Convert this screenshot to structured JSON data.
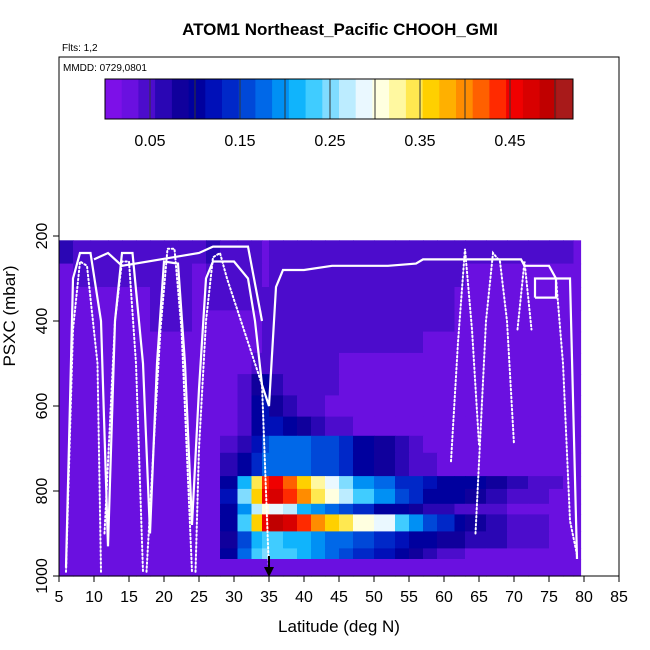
{
  "chart_data": {
    "type": "heatmap",
    "title": "ATOM1 Northeast_Pacific CHOOH_GMI",
    "subtitle_lines": [
      "Flts: 1,2",
      "MMDD: 0729,0801"
    ],
    "xlabel": "Latitude (deg N)",
    "ylabel": "PSXC (mbar)",
    "xlim": [
      5,
      85
    ],
    "ylim": [
      1000,
      0
    ],
    "x_ticks": [
      5,
      10,
      15,
      20,
      25,
      30,
      35,
      40,
      45,
      50,
      55,
      60,
      65,
      70,
      75,
      80,
      85
    ],
    "y_ticks": [
      200,
      400,
      600,
      800,
      1000
    ],
    "colorbar": {
      "range": [
        0,
        0.52
      ],
      "tick_values": [
        0.05,
        0.15,
        0.25,
        0.35,
        0.45
      ],
      "tick_labels": [
        "0.05",
        "0.15",
        "0.25",
        "0.35",
        "0.45"
      ],
      "colors": [
        "#7d10e8",
        "#6a10e0",
        "#4c0ccc",
        "#2a06b4",
        "#10009c",
        "#00009e",
        "#0010b8",
        "#0028c8",
        "#0048d8",
        "#0068e8",
        "#0090f4",
        "#10b4fc",
        "#40ccff",
        "#80dcff",
        "#bcecff",
        "#eaf8ff",
        "#ffffe0",
        "#fff8a0",
        "#ffe850",
        "#ffd000",
        "#ffb000",
        "#ff8c00",
        "#ff6000",
        "#ff2a00",
        "#f00000",
        "#d80000",
        "#c00000",
        "#a81a1a"
      ]
    },
    "marker": {
      "x": 35,
      "label": "arrow"
    },
    "grid": false,
    "legend": "colorbar at top",
    "x_bins": [
      5,
      7,
      9.5,
      12,
      14,
      16,
      18,
      20,
      22,
      24,
      26,
      28,
      30.5,
      32.5,
      34,
      35,
      37,
      39,
      41,
      43,
      45,
      47,
      50,
      53,
      55,
      57,
      59,
      61.5,
      63,
      66,
      69,
      72,
      75,
      77,
      78.5,
      79.5
    ],
    "p_bins": [
      210,
      265,
      320,
      375,
      425,
      475,
      525,
      575,
      625,
      670,
      710,
      765,
      795,
      830,
      855,
      895,
      935,
      960,
      1000
    ],
    "cells": [
      [
        0.06,
        0.05,
        0.05,
        0.05,
        0.04,
        0.04,
        0.04,
        0.04,
        0.04,
        0.05,
        0.06,
        0.05,
        0.05,
        0.04,
        0.03,
        0.04,
        0.04,
        0.04,
        0.04,
        0.04,
        0.04,
        0.04,
        0.04,
        0.04,
        0.04,
        0.04,
        0.04,
        0.04,
        0.04,
        0.04,
        0.04,
        0.04,
        0.04,
        0.04,
        0.02
      ],
      [
        0.02,
        0.04,
        0.04,
        0.04,
        0.04,
        0.04,
        0.04,
        0.04,
        0.04,
        0.03,
        0.04,
        0.05,
        0.05,
        0.04,
        0.03,
        0.04,
        0.04,
        0.04,
        0.04,
        0.04,
        0.04,
        0.04,
        0.04,
        0.04,
        0.04,
        0.04,
        0.04,
        0.04,
        0.02,
        0.02,
        0.02,
        0.02,
        0.02,
        0.02,
        0.02
      ],
      [
        0.02,
        0.03,
        0.03,
        0.03,
        0.03,
        0.03,
        0.04,
        0.04,
        0.04,
        0.03,
        0.04,
        0.04,
        0.04,
        0.04,
        0.04,
        0.04,
        0.04,
        0.04,
        0.04,
        0.04,
        0.04,
        0.04,
        0.04,
        0.04,
        0.04,
        0.04,
        0.04,
        0.02,
        0.02,
        0.02,
        0.02,
        0.02,
        0.02,
        0.02,
        0.02
      ],
      [
        0.02,
        0.02,
        0.03,
        0.03,
        0.03,
        0.03,
        0.04,
        0.04,
        0.04,
        0.03,
        0.03,
        0.03,
        0.03,
        0.03,
        0.04,
        0.04,
        0.04,
        0.04,
        0.04,
        0.04,
        0.04,
        0.04,
        0.04,
        0.04,
        0.04,
        0.04,
        0.04,
        0.02,
        0.02,
        0.02,
        0.02,
        0.02,
        0.02,
        0.02,
        0.02
      ],
      [
        0.02,
        0.02,
        0.03,
        0.03,
        0.03,
        0.03,
        0.03,
        0.03,
        0.03,
        0.03,
        0.03,
        0.02,
        0.02,
        0.03,
        0.04,
        0.04,
        0.04,
        0.04,
        0.04,
        0.04,
        0.04,
        0.04,
        0.04,
        0.04,
        0.04,
        0.03,
        0.03,
        0.02,
        0.02,
        0.02,
        0.02,
        0.02,
        0.02,
        0.02,
        0.02
      ],
      [
        0.02,
        0.02,
        0.02,
        0.02,
        0.02,
        0.03,
        0.03,
        0.03,
        0.03,
        0.03,
        0.03,
        0.02,
        0.02,
        0.04,
        0.05,
        0.05,
        0.04,
        0.04,
        0.04,
        0.04,
        0.03,
        0.03,
        0.03,
        0.03,
        0.03,
        0.02,
        0.02,
        0.02,
        0.02,
        0.02,
        0.02,
        0.02,
        0.02,
        0.02,
        0.02
      ],
      [
        0.02,
        0.02,
        0.02,
        0.02,
        0.02,
        0.02,
        0.02,
        0.02,
        0.02,
        0.02,
        0.02,
        0.03,
        0.04,
        0.08,
        0.1,
        0.06,
        0.05,
        0.05,
        0.04,
        0.04,
        0.03,
        0.03,
        0.03,
        0.03,
        0.03,
        0.02,
        0.02,
        0.02,
        0.02,
        0.02,
        0.02,
        0.02,
        0.02,
        0.02,
        0.02
      ],
      [
        0.02,
        0.02,
        0.02,
        0.02,
        0.02,
        0.02,
        0.02,
        0.02,
        0.02,
        0.02,
        0.02,
        0.03,
        0.05,
        0.1,
        0.12,
        0.09,
        0.07,
        0.05,
        0.04,
        0.03,
        0.02,
        0.02,
        0.02,
        0.02,
        0.02,
        0.02,
        0.02,
        0.02,
        0.02,
        0.02,
        0.02,
        0.02,
        0.02,
        0.02,
        0.02
      ],
      [
        0.02,
        0.02,
        0.02,
        0.02,
        0.02,
        0.02,
        0.02,
        0.02,
        0.02,
        0.02,
        0.02,
        0.03,
        0.05,
        0.1,
        0.12,
        0.12,
        0.11,
        0.09,
        0.07,
        0.05,
        0.04,
        0.03,
        0.02,
        0.02,
        0.02,
        0.02,
        0.02,
        0.02,
        0.02,
        0.02,
        0.02,
        0.02,
        0.02,
        0.02,
        0.02
      ],
      [
        0.02,
        0.02,
        0.02,
        0.02,
        0.02,
        0.02,
        0.02,
        0.02,
        0.02,
        0.02,
        0.02,
        0.04,
        0.06,
        0.12,
        0.16,
        0.17,
        0.17,
        0.17,
        0.16,
        0.15,
        0.13,
        0.11,
        0.09,
        0.06,
        0.04,
        0.03,
        0.02,
        0.02,
        0.02,
        0.02,
        0.02,
        0.02,
        0.02,
        0.02,
        0.02
      ],
      [
        0.02,
        0.02,
        0.02,
        0.02,
        0.02,
        0.02,
        0.02,
        0.02,
        0.02,
        0.02,
        0.02,
        0.06,
        0.1,
        0.14,
        0.17,
        0.17,
        0.17,
        0.17,
        0.16,
        0.15,
        0.13,
        0.11,
        0.09,
        0.07,
        0.05,
        0.04,
        0.03,
        0.02,
        0.02,
        0.02,
        0.02,
        0.02,
        0.02,
        0.02,
        0.02
      ],
      [
        0.02,
        0.02,
        0.02,
        0.02,
        0.02,
        0.02,
        0.02,
        0.02,
        0.02,
        0.02,
        0.02,
        0.1,
        0.22,
        0.34,
        0.44,
        0.46,
        0.41,
        0.37,
        0.33,
        0.29,
        0.25,
        0.2,
        0.17,
        0.14,
        0.13,
        0.12,
        0.11,
        0.11,
        0.1,
        0.09,
        0.07,
        0.05,
        0.04,
        0.02,
        0.02
      ],
      [
        0.02,
        0.02,
        0.02,
        0.02,
        0.02,
        0.02,
        0.02,
        0.02,
        0.02,
        0.02,
        0.02,
        0.12,
        0.25,
        0.36,
        0.45,
        0.47,
        0.43,
        0.39,
        0.35,
        0.31,
        0.27,
        0.23,
        0.19,
        0.15,
        0.13,
        0.11,
        0.1,
        0.1,
        0.09,
        0.07,
        0.05,
        0.04,
        0.03,
        0.02,
        0.02
      ],
      [
        0.02,
        0.02,
        0.02,
        0.02,
        0.02,
        0.02,
        0.02,
        0.02,
        0.02,
        0.02,
        0.02,
        0.1,
        0.2,
        0.26,
        0.3,
        0.28,
        0.26,
        0.22,
        0.2,
        0.17,
        0.15,
        0.13,
        0.11,
        0.1,
        0.08,
        0.07,
        0.06,
        0.05,
        0.04,
        0.04,
        0.03,
        0.03,
        0.02,
        0.02,
        0.02
      ],
      [
        0.02,
        0.02,
        0.02,
        0.02,
        0.02,
        0.02,
        0.02,
        0.02,
        0.02,
        0.02,
        0.02,
        0.1,
        0.23,
        0.36,
        0.46,
        0.49,
        0.47,
        0.44,
        0.4,
        0.37,
        0.34,
        0.31,
        0.28,
        0.24,
        0.2,
        0.16,
        0.13,
        0.11,
        0.09,
        0.07,
        0.05,
        0.04,
        0.03,
        0.02,
        0.02
      ],
      [
        0.02,
        0.02,
        0.02,
        0.02,
        0.02,
        0.02,
        0.02,
        0.02,
        0.02,
        0.02,
        0.02,
        0.08,
        0.16,
        0.21,
        0.24,
        0.23,
        0.22,
        0.21,
        0.2,
        0.18,
        0.17,
        0.15,
        0.14,
        0.12,
        0.11,
        0.1,
        0.09,
        0.08,
        0.07,
        0.06,
        0.05,
        0.04,
        0.03,
        0.02,
        0.02
      ],
      [
        0.02,
        0.02,
        0.02,
        0.02,
        0.02,
        0.02,
        0.02,
        0.02,
        0.02,
        0.02,
        0.02,
        0.1,
        0.18,
        0.24,
        0.25,
        0.24,
        0.23,
        0.21,
        0.2,
        0.18,
        0.16,
        0.14,
        0.12,
        0.1,
        0.08,
        0.06,
        0.05,
        0.04,
        0.03,
        0.02,
        0.02,
        0.02,
        0.02,
        0.02,
        0.02
      ],
      [
        0.02,
        0.02,
        0.02,
        0.02,
        0.02,
        0.02,
        0.02,
        0.02,
        0.02,
        0.02,
        0.02,
        0.02,
        0.02,
        0.02,
        0.02,
        0.02,
        0.02,
        0.02,
        0.02,
        0.02,
        0.02,
        0.02,
        0.02,
        0.02,
        0.02,
        0.02,
        0.02,
        0.02,
        0.02,
        0.02,
        0.02,
        0.02,
        0.02,
        0.02,
        0.02
      ]
    ],
    "solid_track": [
      [
        6,
        980
      ],
      [
        7,
        300
      ],
      [
        8,
        240
      ],
      [
        9.5,
        240
      ],
      [
        11,
        400
      ],
      [
        12,
        930
      ],
      [
        13,
        400
      ],
      [
        14,
        240
      ],
      [
        15.5,
        240
      ],
      [
        17,
        500
      ],
      [
        18,
        900
      ],
      [
        19,
        500
      ],
      [
        20,
        260
      ],
      [
        22,
        265
      ],
      [
        23,
        500
      ],
      [
        24,
        880
      ],
      [
        25,
        560
      ],
      [
        26,
        300
      ],
      [
        27,
        260
      ],
      [
        30,
        260
      ],
      [
        32,
        300
      ],
      [
        33,
        400
      ],
      [
        34,
        550
      ],
      [
        35,
        600
      ],
      [
        36,
        320
      ],
      [
        37,
        280
      ],
      [
        40,
        280
      ],
      [
        44,
        270
      ],
      [
        52,
        270
      ],
      [
        56,
        265
      ],
      [
        57,
        255
      ],
      [
        66,
        255
      ],
      [
        69,
        255
      ],
      [
        71,
        255
      ],
      [
        71.5,
        270
      ],
      [
        75,
        270
      ],
      [
        76,
        300
      ],
      [
        78,
        300
      ],
      [
        79,
        960
      ]
    ],
    "solid_track_upper": [
      [
        10,
        255
      ],
      [
        12,
        240
      ],
      [
        14,
        270
      ],
      [
        25,
        240
      ],
      [
        27,
        225
      ],
      [
        32,
        225
      ],
      [
        34,
        400
      ]
    ],
    "solid_track_box": [
      [
        73,
        345
      ],
      [
        76,
        345
      ],
      [
        76,
        300
      ],
      [
        73,
        300
      ]
    ],
    "dotted_tracks": [
      [
        [
          6,
          990
        ],
        [
          7,
          420
        ],
        [
          8,
          260
        ],
        [
          9,
          270
        ],
        [
          10.5,
          500
        ],
        [
          11,
          990
        ]
      ],
      [
        [
          11.5,
          900
        ],
        [
          13,
          400
        ],
        [
          14,
          260
        ],
        [
          15,
          260
        ],
        [
          16,
          500
        ],
        [
          17,
          990
        ]
      ],
      [
        [
          17.5,
          990
        ],
        [
          18.5,
          700
        ],
        [
          19.5,
          420
        ],
        [
          20.5,
          230
        ],
        [
          21.5,
          230
        ],
        [
          22.5,
          420
        ],
        [
          24,
          990
        ]
      ],
      [
        [
          24.5,
          990
        ],
        [
          25,
          700
        ],
        [
          26,
          400
        ],
        [
          27,
          250
        ],
        [
          28,
          240
        ],
        [
          29,
          300
        ],
        [
          31,
          400
        ],
        [
          33,
          500
        ],
        [
          34,
          550
        ],
        [
          35,
          990
        ]
      ],
      [
        [
          61,
          730
        ],
        [
          62,
          450
        ],
        [
          63,
          230
        ],
        [
          64,
          420
        ],
        [
          65,
          690
        ]
      ],
      [
        [
          64.5,
          900
        ],
        [
          66,
          400
        ],
        [
          67,
          240
        ],
        [
          68,
          260
        ],
        [
          69,
          400
        ],
        [
          70,
          690
        ]
      ],
      [
        [
          70.5,
          420
        ],
        [
          71.5,
          260
        ],
        [
          72.5,
          420
        ]
      ],
      [
        [
          76,
          300
        ],
        [
          77,
          500
        ],
        [
          78,
          870
        ],
        [
          79,
          950
        ]
      ]
    ]
  }
}
